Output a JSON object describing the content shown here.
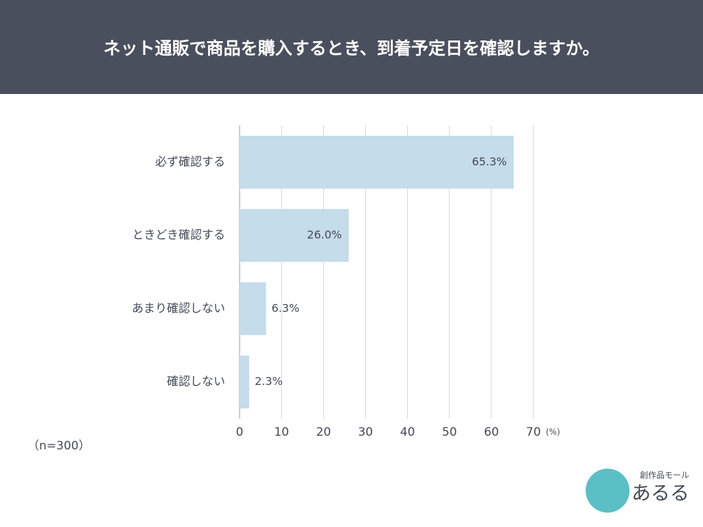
{
  "chart_data": {
    "type": "hbar",
    "title": "ネット通販で商品を購入するとき、到着予定日を確認しますか。",
    "categories": [
      "必ず確認する",
      "ときどき確認する",
      "あまり確認しない",
      "確認しない"
    ],
    "values": [
      65.3,
      26.0,
      6.3,
      2.3
    ],
    "value_labels": [
      "65.3%",
      "26.0%",
      "6.3%",
      "2.3%"
    ],
    "color": "#c5dcea",
    "xlim": [
      0,
      70
    ],
    "xticks": [
      0,
      10,
      20,
      30,
      40,
      50,
      60,
      70
    ],
    "x_unit": "(%)",
    "grid": true,
    "note": "（n=300）"
  },
  "logo": {
    "tagline": "創作品モール",
    "name": "あるる"
  }
}
